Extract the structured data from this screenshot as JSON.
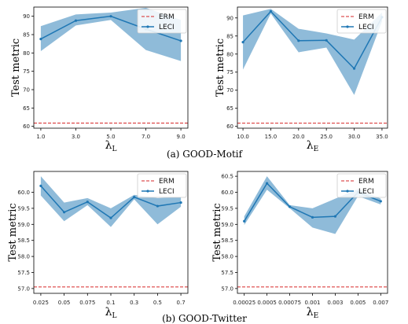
{
  "figure": {
    "captions": [
      {
        "text": "(a) GOOD-Motif"
      },
      {
        "text": "(b) GOOD-Twitter"
      }
    ]
  },
  "chart_data": [
    {
      "type": "line",
      "ylabel": "Test metric",
      "xlabel_main": "λ",
      "xlabel_sub": "L",
      "x_tick_labels": [
        "1.0",
        "3.0",
        "5.0",
        "7.0",
        "9.0"
      ],
      "xlim": [
        0.6,
        9.4
      ],
      "ylim": [
        59.5,
        92.5
      ],
      "y_ticks": [
        60,
        65,
        70,
        75,
        80,
        85,
        90
      ],
      "y_tick_labels": [
        "60",
        "65",
        "70",
        "75",
        "80",
        "85",
        "90"
      ],
      "legend_position": "top-right",
      "reference": {
        "name": "ERM",
        "value": 60.9,
        "color": "#d62728"
      },
      "series": [
        {
          "name": "LECI",
          "color": "#1f77b4",
          "x": [
            1.0,
            3.0,
            5.0,
            7.0,
            9.0
          ],
          "values": [
            83.8,
            88.8,
            90.0,
            86.5,
            83.3
          ],
          "upper": [
            87.3,
            90.5,
            91.0,
            92.3,
            89.0
          ],
          "lower": [
            80.5,
            87.5,
            89.0,
            80.8,
            77.8
          ]
        }
      ]
    },
    {
      "type": "line",
      "ylabel": "Test metric",
      "xlabel_main": "λ",
      "xlabel_sub": "E",
      "x_tick_labels": [
        "10.0",
        "15.0",
        "20.0",
        "25.0",
        "30.0",
        "35.0"
      ],
      "xlim": [
        9.0,
        36.0
      ],
      "ylim": [
        59.5,
        93.0
      ],
      "y_ticks": [
        60,
        65,
        70,
        75,
        80,
        85,
        90
      ],
      "y_tick_labels": [
        "60",
        "65",
        "70",
        "75",
        "80",
        "85",
        "90"
      ],
      "legend_position": "top-right",
      "reference": {
        "name": "ERM",
        "value": 60.9,
        "color": "#d62728"
      },
      "series": [
        {
          "name": "LECI",
          "color": "#1f77b4",
          "x": [
            10.0,
            15.0,
            20.0,
            25.0,
            30.0,
            35.0
          ],
          "values": [
            83.3,
            91.8,
            83.7,
            83.8,
            76.0,
            90.2
          ],
          "upper": [
            90.7,
            92.5,
            87.0,
            85.7,
            84.0,
            91.5
          ],
          "lower": [
            75.7,
            91.2,
            80.5,
            81.8,
            68.7,
            89.0
          ]
        }
      ]
    },
    {
      "type": "line",
      "ylabel": "Test metric",
      "xlabel_main": "λ",
      "xlabel_sub": "L",
      "x_tick_labels": [
        "0.025",
        "0.05",
        "0.075",
        "0.1",
        "0.3",
        "0.5",
        "0.7"
      ],
      "xlim": [
        -0.3,
        6.3
      ],
      "ylim": [
        56.85,
        60.65
      ],
      "y_ticks": [
        57.0,
        57.5,
        58.0,
        58.5,
        59.0,
        59.5,
        60.0
      ],
      "y_tick_labels": [
        "57.0",
        "57.5",
        "58.0",
        "58.5",
        "59.0",
        "59.5",
        "60.0"
      ],
      "legend_position": "top-right",
      "reference": {
        "name": "ERM",
        "value": 57.05,
        "color": "#d62728"
      },
      "series": [
        {
          "name": "LECI",
          "color": "#1f77b4",
          "x": [
            0,
            1,
            2,
            3,
            4,
            5,
            6
          ],
          "values": [
            60.2,
            59.38,
            59.7,
            59.2,
            59.85,
            59.57,
            59.68
          ],
          "upper": [
            60.5,
            59.68,
            59.82,
            59.5,
            59.92,
            59.82,
            59.85
          ],
          "lower": [
            59.9,
            59.1,
            59.6,
            58.92,
            59.78,
            59.0,
            59.55
          ]
        }
      ]
    },
    {
      "type": "line",
      "ylabel": "Test metric",
      "xlabel_main": "λ",
      "xlabel_sub": "E",
      "x_tick_labels": [
        "0.00025",
        "0.0005",
        "0.00075",
        "0.001",
        "0.003",
        "0.005",
        "0.007"
      ],
      "xlim": [
        -0.3,
        6.3
      ],
      "ylim": [
        56.85,
        60.65
      ],
      "y_ticks": [
        57.0,
        57.5,
        58.0,
        58.5,
        59.0,
        59.5,
        60.0,
        60.5
      ],
      "y_tick_labels": [
        "57.0",
        "57.5",
        "58.0",
        "58.5",
        "59.0",
        "59.5",
        "60.0",
        "60.5"
      ],
      "legend_position": "top-right",
      "reference": {
        "name": "ERM",
        "value": 57.05,
        "color": "#d62728"
      },
      "series": [
        {
          "name": "LECI",
          "color": "#1f77b4",
          "x": [
            0,
            1,
            2,
            3,
            4,
            5,
            6
          ],
          "values": [
            59.1,
            60.28,
            59.55,
            59.22,
            59.25,
            60.0,
            59.72
          ],
          "upper": [
            59.25,
            60.5,
            59.6,
            59.5,
            59.8,
            60.1,
            59.8
          ],
          "lower": [
            58.98,
            60.08,
            59.5,
            58.9,
            58.7,
            59.88,
            59.62
          ]
        }
      ]
    }
  ]
}
